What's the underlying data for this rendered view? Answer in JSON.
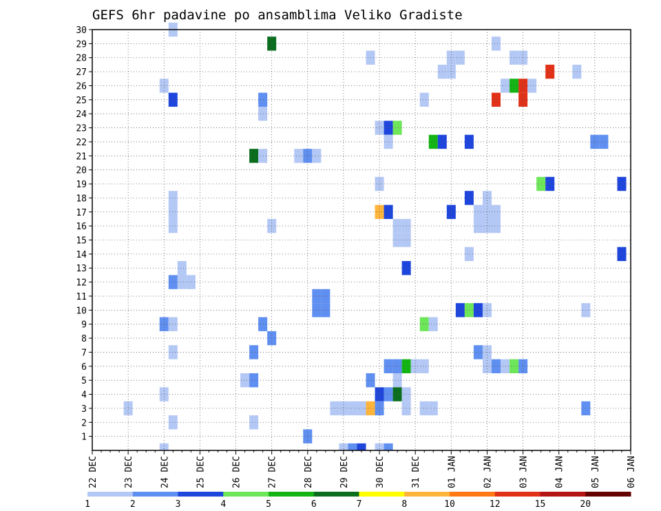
{
  "chart_data": {
    "type": "heatmap",
    "title": "GEFS 6hr padavine po ansamblima Veliko Gradiste",
    "xlabel": "",
    "ylabel": "",
    "x_ticks": [
      "22 DEC",
      "23 DEC",
      "24 DEC",
      "25 DEC",
      "26 DEC",
      "27 DEC",
      "28 DEC",
      "29 DEC",
      "30 DEC",
      "31 DEC",
      "01 JAN",
      "02 JAN",
      "03 JAN",
      "04 JAN",
      "05 JAN",
      "06 JAN"
    ],
    "y_ticks": [
      1,
      2,
      3,
      4,
      5,
      6,
      7,
      8,
      9,
      10,
      11,
      12,
      13,
      14,
      15,
      16,
      17,
      18,
      19,
      20,
      21,
      22,
      23,
      24,
      25,
      26,
      27,
      28,
      29,
      30
    ],
    "xlim_days": [
      0,
      15
    ],
    "ylim": [
      0,
      30
    ],
    "grid": true,
    "legend": {
      "placement": "bottom",
      "bounds": [
        1,
        2,
        3,
        4,
        5,
        6,
        7,
        8,
        10,
        12,
        15,
        20
      ],
      "colors": [
        "#b4c8f5",
        "#5f8ff0",
        "#1e46dc",
        "#6ee65a",
        "#14b414",
        "#0a6e1e",
        "#ffff00",
        "#ffb43c",
        "#ff7814",
        "#e13219",
        "#b41414",
        "#640000"
      ]
    },
    "cells": [
      {
        "t": 2.25,
        "m": 30,
        "c": 0
      },
      {
        "t": 5.0,
        "m": 29,
        "c": 5
      },
      {
        "t": 7.75,
        "m": 28,
        "c": 0
      },
      {
        "t": 10.0,
        "m": 28,
        "c": 0
      },
      {
        "t": 10.25,
        "m": 28,
        "c": 0
      },
      {
        "t": 11.75,
        "m": 28,
        "c": 0
      },
      {
        "t": 12.0,
        "m": 28,
        "c": 0
      },
      {
        "t": 11.25,
        "m": 29,
        "c": 0
      },
      {
        "t": 9.75,
        "m": 27,
        "c": 0
      },
      {
        "t": 10.0,
        "m": 27,
        "c": 0
      },
      {
        "t": 12.75,
        "m": 27,
        "c": 9
      },
      {
        "t": 13.5,
        "m": 27,
        "c": 0
      },
      {
        "t": 2.0,
        "m": 26,
        "c": 0
      },
      {
        "t": 11.5,
        "m": 26,
        "c": 0
      },
      {
        "t": 11.75,
        "m": 26,
        "c": 4
      },
      {
        "t": 12.0,
        "m": 26,
        "c": 9
      },
      {
        "t": 12.25,
        "m": 26,
        "c": 0
      },
      {
        "t": 2.25,
        "m": 25,
        "c": 2
      },
      {
        "t": 4.75,
        "m": 25,
        "c": 1
      },
      {
        "t": 9.25,
        "m": 25,
        "c": 0
      },
      {
        "t": 11.25,
        "m": 25,
        "c": 9
      },
      {
        "t": 12.0,
        "m": 25,
        "c": 9
      },
      {
        "t": 4.75,
        "m": 24,
        "c": 0
      },
      {
        "t": 8.0,
        "m": 23,
        "c": 0
      },
      {
        "t": 8.25,
        "m": 23,
        "c": 2
      },
      {
        "t": 8.5,
        "m": 23,
        "c": 3
      },
      {
        "t": 8.25,
        "m": 22,
        "c": 0
      },
      {
        "t": 9.5,
        "m": 22,
        "c": 4
      },
      {
        "t": 9.75,
        "m": 22,
        "c": 2
      },
      {
        "t": 10.5,
        "m": 22,
        "c": 2
      },
      {
        "t": 14.0,
        "m": 22,
        "c": 1
      },
      {
        "t": 14.25,
        "m": 22,
        "c": 1
      },
      {
        "t": 4.5,
        "m": 21,
        "c": 5
      },
      {
        "t": 4.75,
        "m": 21,
        "c": 0
      },
      {
        "t": 5.75,
        "m": 21,
        "c": 0
      },
      {
        "t": 6.0,
        "m": 21,
        "c": 1
      },
      {
        "t": 6.25,
        "m": 21,
        "c": 0
      },
      {
        "t": 8.0,
        "m": 19,
        "c": 0
      },
      {
        "t": 12.5,
        "m": 19,
        "c": 3
      },
      {
        "t": 12.75,
        "m": 19,
        "c": 2
      },
      {
        "t": 14.75,
        "m": 19,
        "c": 2
      },
      {
        "t": 2.25,
        "m": 18,
        "c": 0
      },
      {
        "t": 10.5,
        "m": 18,
        "c": 2
      },
      {
        "t": 11.0,
        "m": 18,
        "c": 0
      },
      {
        "t": 2.25,
        "m": 17,
        "c": 0
      },
      {
        "t": 8.0,
        "m": 17,
        "c": 7
      },
      {
        "t": 8.25,
        "m": 17,
        "c": 2
      },
      {
        "t": 10.0,
        "m": 17,
        "c": 2
      },
      {
        "t": 10.75,
        "m": 17,
        "c": 0
      },
      {
        "t": 11.0,
        "m": 17,
        "c": 0
      },
      {
        "t": 11.25,
        "m": 17,
        "c": 0
      },
      {
        "t": 2.25,
        "m": 16,
        "c": 0
      },
      {
        "t": 5.0,
        "m": 16,
        "c": 0
      },
      {
        "t": 8.5,
        "m": 16,
        "c": 0
      },
      {
        "t": 8.75,
        "m": 16,
        "c": 0
      },
      {
        "t": 10.75,
        "m": 16,
        "c": 0
      },
      {
        "t": 11.0,
        "m": 16,
        "c": 0
      },
      {
        "t": 11.25,
        "m": 16,
        "c": 0
      },
      {
        "t": 8.5,
        "m": 15,
        "c": 0
      },
      {
        "t": 8.75,
        "m": 15,
        "c": 0
      },
      {
        "t": 10.5,
        "m": 14,
        "c": 0
      },
      {
        "t": 14.75,
        "m": 14,
        "c": 2
      },
      {
        "t": 2.5,
        "m": 13,
        "c": 0
      },
      {
        "t": 8.75,
        "m": 13,
        "c": 2
      },
      {
        "t": 2.25,
        "m": 12,
        "c": 1
      },
      {
        "t": 2.5,
        "m": 12,
        "c": 0
      },
      {
        "t": 2.75,
        "m": 12,
        "c": 0
      },
      {
        "t": 6.25,
        "m": 11,
        "c": 1
      },
      {
        "t": 6.5,
        "m": 11,
        "c": 1
      },
      {
        "t": 6.25,
        "m": 10,
        "c": 1
      },
      {
        "t": 6.5,
        "m": 10,
        "c": 1
      },
      {
        "t": 10.25,
        "m": 10,
        "c": 2
      },
      {
        "t": 10.5,
        "m": 10,
        "c": 3
      },
      {
        "t": 10.75,
        "m": 10,
        "c": 2
      },
      {
        "t": 11.0,
        "m": 10,
        "c": 0
      },
      {
        "t": 13.75,
        "m": 10,
        "c": 0
      },
      {
        "t": 2.0,
        "m": 9,
        "c": 1
      },
      {
        "t": 2.25,
        "m": 9,
        "c": 0
      },
      {
        "t": 4.75,
        "m": 9,
        "c": 1
      },
      {
        "t": 9.25,
        "m": 9,
        "c": 3
      },
      {
        "t": 9.5,
        "m": 9,
        "c": 0
      },
      {
        "t": 5.0,
        "m": 8,
        "c": 1
      },
      {
        "t": 2.25,
        "m": 7,
        "c": 0
      },
      {
        "t": 4.5,
        "m": 7,
        "c": 1
      },
      {
        "t": 10.75,
        "m": 7,
        "c": 1
      },
      {
        "t": 11.0,
        "m": 7,
        "c": 0
      },
      {
        "t": 8.25,
        "m": 6,
        "c": 1
      },
      {
        "t": 8.5,
        "m": 6,
        "c": 1
      },
      {
        "t": 8.75,
        "m": 6,
        "c": 4
      },
      {
        "t": 9.0,
        "m": 6,
        "c": 0
      },
      {
        "t": 9.25,
        "m": 6,
        "c": 0
      },
      {
        "t": 11.0,
        "m": 6,
        "c": 0
      },
      {
        "t": 11.25,
        "m": 6,
        "c": 1
      },
      {
        "t": 11.5,
        "m": 6,
        "c": 0
      },
      {
        "t": 11.75,
        "m": 6,
        "c": 3
      },
      {
        "t": 12.0,
        "m": 6,
        "c": 1
      },
      {
        "t": 4.25,
        "m": 5,
        "c": 0
      },
      {
        "t": 4.5,
        "m": 5,
        "c": 1
      },
      {
        "t": 7.75,
        "m": 5,
        "c": 1
      },
      {
        "t": 8.5,
        "m": 5,
        "c": 0
      },
      {
        "t": 2.0,
        "m": 4,
        "c": 0
      },
      {
        "t": 8.0,
        "m": 4,
        "c": 2
      },
      {
        "t": 8.25,
        "m": 4,
        "c": 1
      },
      {
        "t": 8.5,
        "m": 4,
        "c": 5
      },
      {
        "t": 8.75,
        "m": 4,
        "c": 0
      },
      {
        "t": 1.0,
        "m": 3,
        "c": 0
      },
      {
        "t": 6.75,
        "m": 3,
        "c": 0
      },
      {
        "t": 7.0,
        "m": 3,
        "c": 0
      },
      {
        "t": 7.25,
        "m": 3,
        "c": 0
      },
      {
        "t": 7.5,
        "m": 3,
        "c": 0
      },
      {
        "t": 7.75,
        "m": 3,
        "c": 7
      },
      {
        "t": 8.0,
        "m": 3,
        "c": 1
      },
      {
        "t": 8.75,
        "m": 3,
        "c": 0
      },
      {
        "t": 9.25,
        "m": 3,
        "c": 0
      },
      {
        "t": 9.5,
        "m": 3,
        "c": 0
      },
      {
        "t": 13.75,
        "m": 3,
        "c": 1
      },
      {
        "t": 2.25,
        "m": 2,
        "c": 0
      },
      {
        "t": 4.5,
        "m": 2,
        "c": 0
      },
      {
        "t": 6.0,
        "m": 1,
        "c": 1
      },
      {
        "t": 2.0,
        "m": 0,
        "c": 0
      },
      {
        "t": 7.0,
        "m": 0,
        "c": 0
      },
      {
        "t": 7.25,
        "m": 0,
        "c": 1
      },
      {
        "t": 7.5,
        "m": 0,
        "c": 2
      },
      {
        "t": 8.0,
        "m": 0,
        "c": 0
      },
      {
        "t": 8.25,
        "m": 0,
        "c": 1
      }
    ]
  }
}
